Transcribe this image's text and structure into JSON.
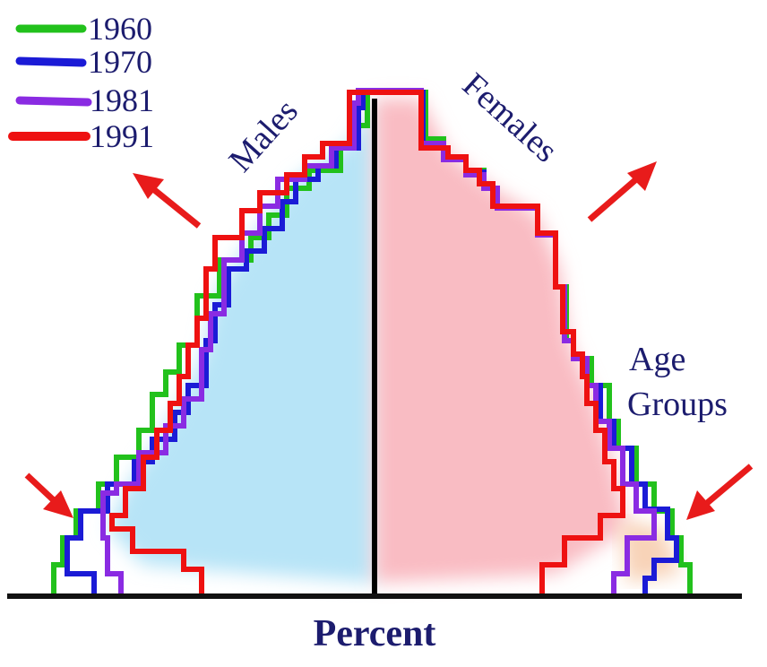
{
  "legend": [
    "1960",
    "1970",
    "1981",
    "1991"
  ],
  "labels": {
    "males": "Males",
    "females": "Females",
    "age_groups": [
      "Age",
      "Groups"
    ],
    "percent": "Percent"
  }
}
